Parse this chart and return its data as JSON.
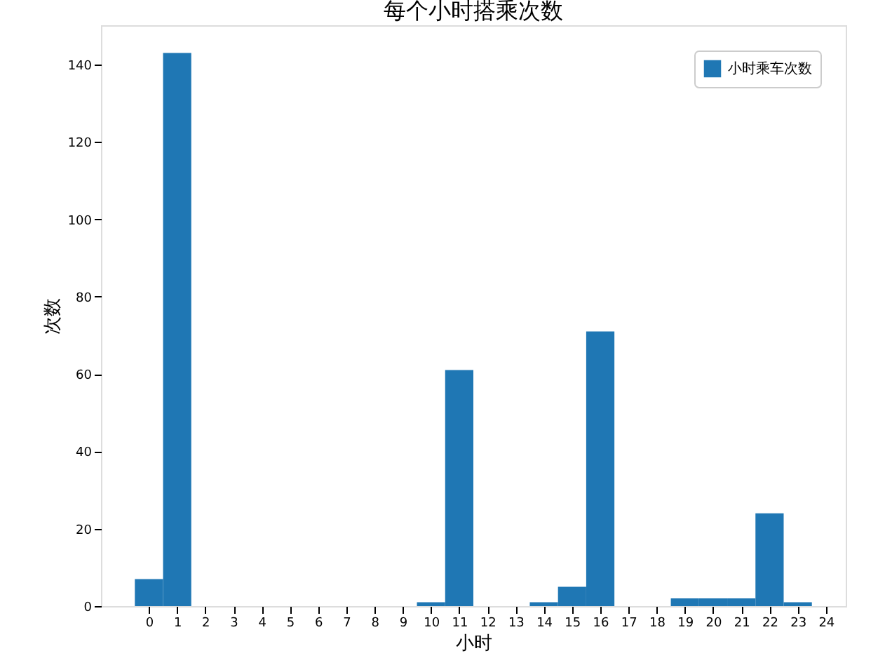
{
  "chart_data": {
    "type": "bar",
    "title": "每个小时搭乘次数",
    "xlabel": "小时",
    "ylabel": "次数",
    "x": [
      0,
      1,
      2,
      3,
      4,
      5,
      6,
      7,
      8,
      9,
      10,
      11,
      12,
      13,
      14,
      15,
      16,
      17,
      18,
      19,
      20,
      21,
      22,
      23
    ],
    "series": [
      {
        "name": "小时乘车次数",
        "color": "#1f77b4",
        "values": [
          7,
          143,
          0,
          0,
          0,
          0,
          0,
          0,
          0,
          0,
          1,
          61,
          0,
          0,
          1,
          5,
          71,
          0,
          0,
          2,
          2,
          2,
          24,
          1
        ]
      }
    ],
    "xlim": [
      -1.7,
      24.7
    ],
    "xticks": [
      0,
      1,
      2,
      3,
      4,
      5,
      6,
      7,
      8,
      9,
      10,
      11,
      12,
      13,
      14,
      15,
      16,
      17,
      18,
      19,
      20,
      21,
      22,
      23,
      24
    ],
    "ylim": [
      0,
      150.15
    ],
    "yticks": [
      0,
      20,
      40,
      60,
      80,
      100,
      120,
      140
    ],
    "legend": "top right",
    "grid": false
  }
}
